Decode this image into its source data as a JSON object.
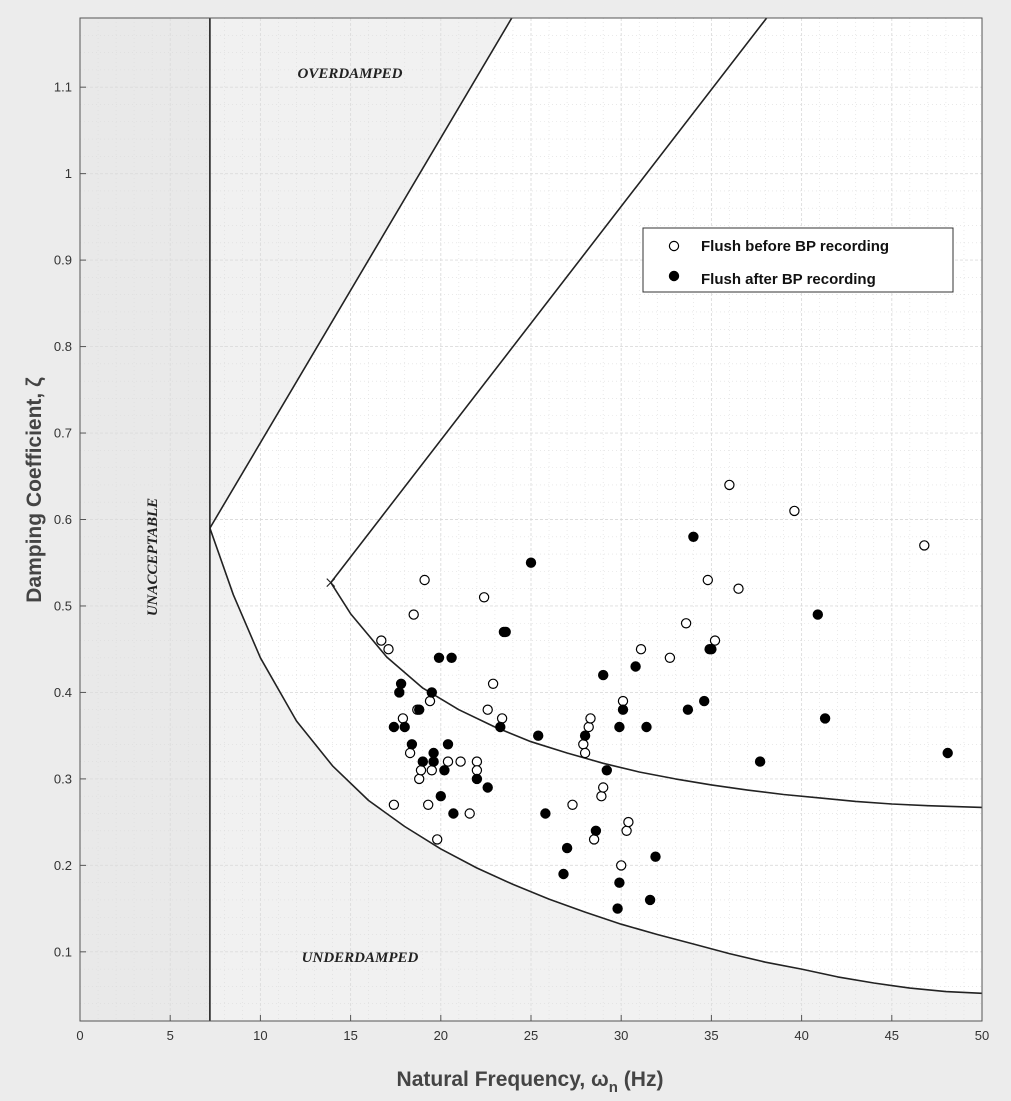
{
  "chart_data": {
    "type": "scatter",
    "xlabel": "Natural Frequency, ω",
    "xlabel_subscript": "n",
    "xlabel_suffix": " (Hz)",
    "ylabel": "Damping Coefficient, ζ",
    "xlim": [
      0,
      50
    ],
    "ylim": [
      0.02,
      1.18
    ],
    "x_ticks": [
      0,
      5,
      10,
      15,
      20,
      25,
      30,
      35,
      40,
      45,
      50
    ],
    "y_ticks": [
      0.1,
      0.2,
      0.3,
      0.4,
      0.5,
      0.6,
      0.7,
      0.8,
      0.9,
      1,
      1.1
    ],
    "grid": true,
    "legend_position": "upper-right",
    "regions": {
      "overdamped": "OVERDAMPED",
      "underdamped": "UNDERDAMPED",
      "unacceptable": "UNACCEPTABLE"
    },
    "boundaries": {
      "vertical_line_x": 7.2,
      "outer_vertex": [
        7.2,
        0.59
      ],
      "outer_upper": [
        [
          7.2,
          0.59
        ],
        [
          24.5,
          1.2
        ]
      ],
      "outer_lower": [
        [
          7.2,
          0.59
        ],
        [
          8.5,
          0.513
        ],
        [
          10,
          0.44
        ],
        [
          12,
          0.367
        ],
        [
          14,
          0.315
        ],
        [
          16,
          0.275
        ],
        [
          18,
          0.245
        ],
        [
          20,
          0.219
        ],
        [
          22,
          0.197
        ],
        [
          24,
          0.178
        ],
        [
          26,
          0.161
        ],
        [
          28,
          0.146
        ],
        [
          30,
          0.132
        ],
        [
          32,
          0.12
        ],
        [
          34,
          0.109
        ],
        [
          36,
          0.098
        ],
        [
          38,
          0.088
        ],
        [
          40,
          0.08
        ],
        [
          42,
          0.071
        ],
        [
          44,
          0.064
        ],
        [
          46,
          0.058
        ],
        [
          48,
          0.054
        ],
        [
          50,
          0.052
        ]
      ],
      "inner_vertex": [
        13.9,
        0.527
      ],
      "inner_upper": [
        [
          13.9,
          0.527
        ],
        [
          38.8,
          1.2
        ]
      ],
      "inner_lower": [
        [
          13.9,
          0.527
        ],
        [
          15,
          0.491
        ],
        [
          17,
          0.441
        ],
        [
          19,
          0.405
        ],
        [
          21,
          0.38
        ],
        [
          23,
          0.36
        ],
        [
          25,
          0.343
        ],
        [
          27,
          0.33
        ],
        [
          29,
          0.318
        ],
        [
          31,
          0.308
        ],
        [
          33,
          0.3
        ],
        [
          35,
          0.293
        ],
        [
          37,
          0.287
        ],
        [
          39,
          0.282
        ],
        [
          41,
          0.278
        ],
        [
          43,
          0.274
        ],
        [
          45,
          0.271
        ],
        [
          47,
          0.269
        ],
        [
          50,
          0.267
        ]
      ]
    },
    "series": [
      {
        "name": "Flush before BP recording",
        "marker": "open",
        "points": [
          [
            16.7,
            0.46
          ],
          [
            17.1,
            0.45
          ],
          [
            17.4,
            0.27
          ],
          [
            17.9,
            0.37
          ],
          [
            18.3,
            0.33
          ],
          [
            18.5,
            0.49
          ],
          [
            18.7,
            0.38
          ],
          [
            18.8,
            0.3
          ],
          [
            18.9,
            0.31
          ],
          [
            19.1,
            0.53
          ],
          [
            19.3,
            0.27
          ],
          [
            19.4,
            0.39
          ],
          [
            19.5,
            0.31
          ],
          [
            19.8,
            0.23
          ],
          [
            20.4,
            0.32
          ],
          [
            21.1,
            0.32
          ],
          [
            21.6,
            0.26
          ],
          [
            22.0,
            0.32
          ],
          [
            22.0,
            0.31
          ],
          [
            22.4,
            0.51
          ],
          [
            22.6,
            0.38
          ],
          [
            22.9,
            0.41
          ],
          [
            23.4,
            0.37
          ],
          [
            27.3,
            0.27
          ],
          [
            27.9,
            0.34
          ],
          [
            28.0,
            0.33
          ],
          [
            28.2,
            0.36
          ],
          [
            28.3,
            0.37
          ],
          [
            28.5,
            0.23
          ],
          [
            28.9,
            0.28
          ],
          [
            29.0,
            0.29
          ],
          [
            30.0,
            0.2
          ],
          [
            30.1,
            0.39
          ],
          [
            30.3,
            0.24
          ],
          [
            30.4,
            0.25
          ],
          [
            31.1,
            0.45
          ],
          [
            32.7,
            0.44
          ],
          [
            33.6,
            0.48
          ],
          [
            34.8,
            0.53
          ],
          [
            35.2,
            0.46
          ],
          [
            36.0,
            0.64
          ],
          [
            36.5,
            0.52
          ],
          [
            39.6,
            0.61
          ],
          [
            46.8,
            0.57
          ]
        ]
      },
      {
        "name": "Flush after BP recording",
        "marker": "filled",
        "points": [
          [
            17.4,
            0.36
          ],
          [
            17.7,
            0.4
          ],
          [
            17.8,
            0.41
          ],
          [
            18.0,
            0.36
          ],
          [
            18.4,
            0.34
          ],
          [
            18.8,
            0.38
          ],
          [
            19.0,
            0.32
          ],
          [
            19.5,
            0.4
          ],
          [
            19.6,
            0.32
          ],
          [
            19.6,
            0.33
          ],
          [
            19.9,
            0.44
          ],
          [
            20.0,
            0.28
          ],
          [
            20.2,
            0.31
          ],
          [
            20.4,
            0.34
          ],
          [
            20.6,
            0.44
          ],
          [
            20.7,
            0.26
          ],
          [
            22.0,
            0.3
          ],
          [
            22.6,
            0.29
          ],
          [
            23.3,
            0.36
          ],
          [
            23.5,
            0.47
          ],
          [
            23.6,
            0.47
          ],
          [
            25.0,
            0.55
          ],
          [
            25.4,
            0.35
          ],
          [
            25.8,
            0.26
          ],
          [
            26.8,
            0.19
          ],
          [
            27.0,
            0.22
          ],
          [
            28.0,
            0.35
          ],
          [
            28.6,
            0.24
          ],
          [
            29.0,
            0.42
          ],
          [
            29.2,
            0.31
          ],
          [
            29.8,
            0.15
          ],
          [
            29.9,
            0.18
          ],
          [
            29.9,
            0.36
          ],
          [
            30.1,
            0.38
          ],
          [
            30.8,
            0.43
          ],
          [
            31.4,
            0.36
          ],
          [
            31.6,
            0.16
          ],
          [
            31.9,
            0.21
          ],
          [
            33.7,
            0.38
          ],
          [
            34.0,
            0.58
          ],
          [
            34.6,
            0.39
          ],
          [
            34.9,
            0.45
          ],
          [
            35.0,
            0.45
          ],
          [
            37.7,
            0.32
          ],
          [
            40.9,
            0.49
          ],
          [
            41.3,
            0.37
          ],
          [
            48.1,
            0.33
          ]
        ]
      }
    ],
    "colors": {
      "frame_bg": "#ececec",
      "plot_bg": "#ffffff",
      "shade": "#f1f1f1",
      "grid": "#dcdcdc",
      "line": "#222222",
      "marker": "#000000"
    }
  }
}
